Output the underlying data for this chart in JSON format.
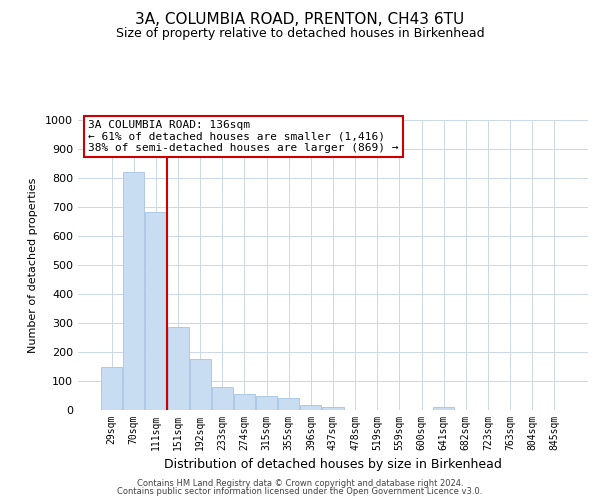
{
  "title_line1": "3A, COLUMBIA ROAD, PRENTON, CH43 6TU",
  "title_line2": "Size of property relative to detached houses in Birkenhead",
  "xlabel": "Distribution of detached houses by size in Birkenhead",
  "ylabel": "Number of detached properties",
  "bin_labels": [
    "29sqm",
    "70sqm",
    "111sqm",
    "151sqm",
    "192sqm",
    "233sqm",
    "274sqm",
    "315sqm",
    "355sqm",
    "396sqm",
    "437sqm",
    "478sqm",
    "519sqm",
    "559sqm",
    "600sqm",
    "641sqm",
    "682sqm",
    "723sqm",
    "763sqm",
    "804sqm",
    "845sqm"
  ],
  "bar_values": [
    150,
    822,
    683,
    285,
    175,
    80,
    55,
    50,
    42,
    18,
    10,
    0,
    0,
    0,
    0,
    10,
    0,
    0,
    0,
    0,
    0
  ],
  "bar_color": "#c8ddf2",
  "bar_edge_color": "#9bbcde",
  "vline_x": 2.5,
  "vline_color": "#cc0000",
  "annotation_title": "3A COLUMBIA ROAD: 136sqm",
  "annotation_line1": "← 61% of detached houses are smaller (1,416)",
  "annotation_line2": "38% of semi-detached houses are larger (869) →",
  "annotation_box_color": "#cc0000",
  "ylim": [
    0,
    1000
  ],
  "yticks": [
    0,
    100,
    200,
    300,
    400,
    500,
    600,
    700,
    800,
    900,
    1000
  ],
  "footer_line1": "Contains HM Land Registry data © Crown copyright and database right 2024.",
  "footer_line2": "Contains public sector information licensed under the Open Government Licence v3.0.",
  "background_color": "#ffffff",
  "grid_color": "#ccd8e8"
}
